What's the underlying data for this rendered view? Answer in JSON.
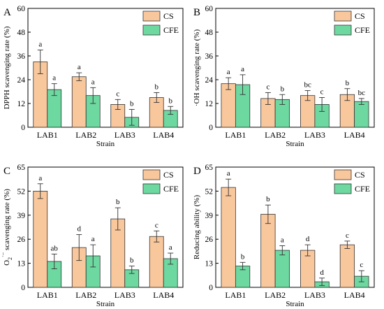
{
  "colors": {
    "cs": "#f9c79c",
    "cfe": "#6dd8a0",
    "bar_stroke": "#333333",
    "axis": "#000000"
  },
  "chart_data": [
    {
      "type": "bar",
      "panel": "A",
      "categories": [
        "LAB1",
        "LAB2",
        "LAB3",
        "LAB4"
      ],
      "xlabel": "Strain",
      "ylabel": "DPPH scavenging rate (%)",
      "ylim": [
        0,
        60
      ],
      "yticks": [
        "0",
        "12",
        "24",
        "36",
        "48",
        "60"
      ],
      "legend_position": "top-right",
      "series": [
        {
          "name": "CS",
          "values": [
            33,
            25.5,
            11.5,
            15
          ],
          "errors": [
            6,
            2,
            2.5,
            2.5
          ],
          "letters": [
            "a",
            "a",
            "c",
            "b"
          ]
        },
        {
          "name": "CFE",
          "values": [
            19,
            16,
            5,
            8.5
          ],
          "errors": [
            3,
            4,
            4,
            2
          ],
          "letters": [
            "a",
            "a",
            "b",
            "b"
          ]
        }
      ]
    },
    {
      "type": "bar",
      "panel": "B",
      "categories": [
        "LAB1",
        "LAB2",
        "LAB3",
        "LAB4"
      ],
      "xlabel": "Strain",
      "ylabel": "·OH scavenging rate (%)",
      "ylim": [
        0,
        60
      ],
      "yticks": [
        "0",
        "12",
        "24",
        "36",
        "48",
        "60"
      ],
      "legend_position": "top-right",
      "series": [
        {
          "name": "CS",
          "values": [
            22,
            14.5,
            16,
            16.5
          ],
          "errors": [
            3,
            3,
            2.5,
            3
          ],
          "letters": [
            "a",
            "c",
            "bc",
            "b"
          ]
        },
        {
          "name": "CFE",
          "values": [
            21.5,
            14,
            11.5,
            13
          ],
          "errors": [
            5,
            2.5,
            3.5,
            1.5
          ],
          "letters": [
            "a",
            "b",
            "c",
            "bc"
          ]
        }
      ]
    },
    {
      "type": "bar",
      "panel": "C",
      "categories": [
        "LAB1",
        "LAB2",
        "LAB3",
        "LAB4"
      ],
      "xlabel": "Strain",
      "ylabel_main": "O",
      "ylabel_sub": "2",
      "ylabel_sup": "·−",
      "ylabel_rest": " scavenging rate (%)",
      "ylim": [
        0,
        65
      ],
      "yticks": [
        "0",
        "13",
        "26",
        "39",
        "52",
        "65"
      ],
      "legend_position": "top-right",
      "series": [
        {
          "name": "CS",
          "values": [
            52,
            21.5,
            37,
            27.5
          ],
          "errors": [
            4,
            7,
            6,
            3
          ],
          "letters": [
            "a",
            "d",
            "b",
            "c"
          ]
        },
        {
          "name": "CFE",
          "values": [
            14,
            17,
            9.5,
            15.5
          ],
          "errors": [
            4,
            6,
            2,
            3
          ],
          "letters": [
            "ab",
            "a",
            "b",
            "a"
          ]
        }
      ]
    },
    {
      "type": "bar",
      "panel": "D",
      "categories": [
        "LAB1",
        "LAB2",
        "LAB3",
        "LAB4"
      ],
      "xlabel": "Strain",
      "ylabel": "Reducing ability (%)",
      "ylim": [
        0,
        65
      ],
      "yticks": [
        "0",
        "13",
        "26",
        "39",
        "52",
        "65"
      ],
      "legend_position": "top-right",
      "series": [
        {
          "name": "CS",
          "values": [
            54,
            39.5,
            20,
            23
          ],
          "errors": [
            4.5,
            5,
            3,
            2
          ],
          "letters": [
            "a",
            "b",
            "d",
            "c"
          ]
        },
        {
          "name": "CFE",
          "values": [
            11.5,
            20,
            3,
            6
          ],
          "errors": [
            2,
            2.5,
            2,
            3
          ],
          "letters": [
            "b",
            "a",
            "d",
            "c"
          ]
        }
      ]
    }
  ]
}
